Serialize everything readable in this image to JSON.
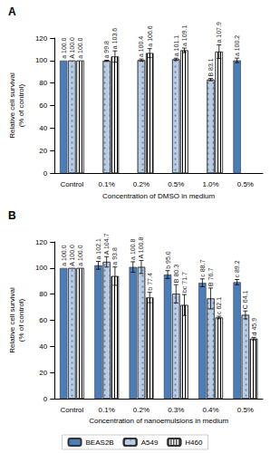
{
  "chart_data": [
    {
      "type": "bar",
      "title": "A",
      "x_label": "Concentration of DMSO in medium",
      "y_label": "Relative cell survival\n(% of control)",
      "categories": [
        "Control",
        "0.1%",
        "0.2%",
        "0.5%",
        "1.0%",
        "0.5%"
      ],
      "ylim": [
        0,
        120
      ],
      "yticks": [
        0,
        20,
        40,
        60,
        80,
        100,
        120
      ],
      "data_labels": true,
      "series": [
        {
          "name": "BEAS2B",
          "color": "#4a7ebb",
          "values": [
            100.0,
            null,
            null,
            null,
            null,
            100.2
          ],
          "value_labels": [
            "100.0",
            null,
            null,
            null,
            null,
            "100.2"
          ],
          "errors": [
            0,
            null,
            null,
            null,
            null,
            2
          ],
          "annotations": [
            "a",
            null,
            null,
            null,
            null,
            "a"
          ]
        },
        {
          "name": "A549",
          "color": "#b8cce4",
          "values": [
            100.0,
            99.8,
            100.4,
            101.1,
            83.1,
            null
          ],
          "value_labels": [
            "100.0",
            "99.8",
            "100.4",
            "101.1",
            "83.1",
            null
          ],
          "errors": [
            0,
            0.5,
            1,
            1,
            1,
            null
          ],
          "annotations": [
            "A",
            "a",
            "a",
            "a",
            "B",
            null
          ]
        },
        {
          "name": "H460",
          "color": "#ffffff",
          "values": [
            100.0,
            103.6,
            106.6,
            109.1,
            107.9,
            null
          ],
          "value_labels": [
            "100.0",
            "103.6",
            "106.6",
            "109.1",
            "107.9",
            null
          ],
          "errors": [
            0,
            5,
            4,
            2,
            6,
            null
          ],
          "annotations": [
            "a",
            "a",
            "a",
            "a",
            "a",
            null
          ]
        }
      ]
    },
    {
      "type": "bar",
      "title": "B",
      "x_label": "Concentration of nanoemulsions in medium",
      "y_label": "Relative cell survival\n(% of control)",
      "categories": [
        "Control",
        "0.1%",
        "0.2%",
        "0.3%",
        "0.4%",
        "0.5%"
      ],
      "ylim": [
        0,
        120
      ],
      "yticks": [
        0,
        20,
        40,
        60,
        80,
        100,
        120
      ],
      "data_labels": true,
      "legend": "bottom",
      "series": [
        {
          "name": "BEAS2B",
          "color": "#4a7ebb",
          "values": [
            100.0,
            102.1,
            100.8,
            95.0,
            88.7,
            89.2
          ],
          "value_labels": [
            "100.0",
            "102.1",
            "100.8",
            "95.0",
            "88.7",
            "89.2"
          ],
          "errors": [
            0,
            3,
            4,
            3,
            3,
            2
          ],
          "annotations": [
            "a",
            "a",
            "a",
            "b",
            "c",
            "c"
          ]
        },
        {
          "name": "A549",
          "color": "#b8cce4",
          "values": [
            100.0,
            104.7,
            100.8,
            80.3,
            76.7,
            64.1
          ],
          "value_labels": [
            "100.0",
            "104.7",
            "100.8",
            "80.3",
            "76.7",
            "64.1"
          ],
          "errors": [
            0,
            4,
            5,
            7,
            8,
            3
          ],
          "annotations": [
            "A",
            "A",
            "A",
            "B",
            "B",
            "C"
          ]
        },
        {
          "name": "H460",
          "color": "#ffffff",
          "values": [
            100.0,
            93.8,
            77.4,
            71.7,
            62.1,
            45.9
          ],
          "value_labels": [
            "100.0",
            "93.8",
            "77.4",
            "71.7",
            "62.1",
            "45.9"
          ],
          "errors": [
            0,
            7,
            4,
            8,
            1,
            1
          ],
          "annotations": [
            "a",
            "a",
            "b",
            "bc",
            "c",
            "d"
          ]
        }
      ]
    }
  ]
}
